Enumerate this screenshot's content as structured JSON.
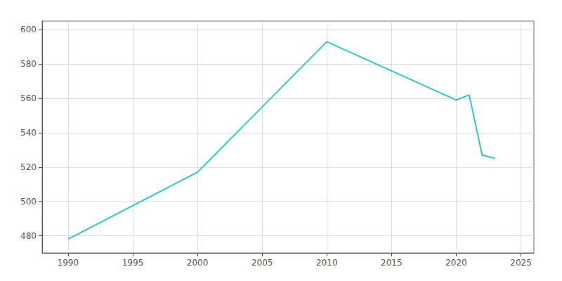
{
  "chart_data": {
    "type": "line",
    "x": [
      1990,
      2000,
      2010,
      2015,
      2020,
      2021,
      2022,
      2023
    ],
    "values": [
      478,
      517,
      593,
      576,
      559,
      562,
      527,
      525
    ],
    "color": "#2ec8c8",
    "xlim": [
      1988,
      2026
    ],
    "xticks": [
      1990,
      1995,
      2000,
      2005,
      2010,
      2015,
      2020,
      2025
    ],
    "ylim": [
      470,
      605
    ],
    "yticks": [
      480,
      500,
      520,
      540,
      560,
      580,
      600
    ],
    "grid": true
  }
}
